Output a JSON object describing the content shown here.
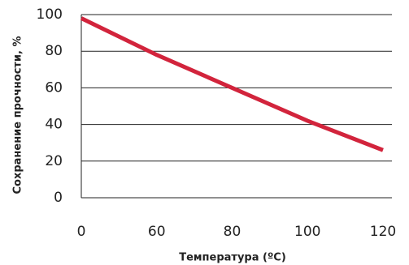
{
  "chart_data": {
    "type": "line",
    "xlabel": "Температура (ºC)",
    "ylabel": "Сохранение прочности, %",
    "categories": [
      "0",
      "60",
      "80",
      "100",
      "120"
    ],
    "values": [
      98,
      78,
      60,
      42,
      26
    ],
    "color": "#d2243c",
    "ylim": [
      0,
      100
    ],
    "yticks": [
      0,
      20,
      40,
      60,
      80,
      100
    ],
    "grid": true
  }
}
